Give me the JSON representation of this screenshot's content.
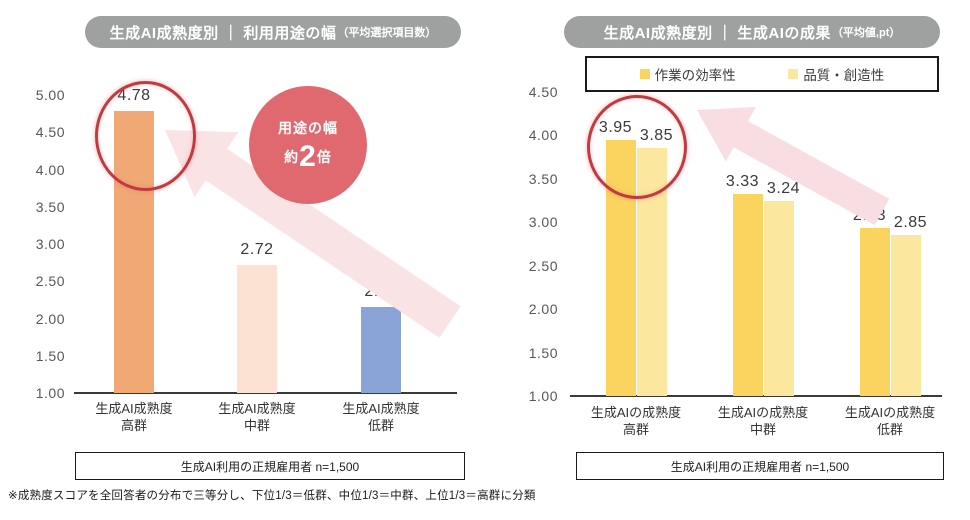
{
  "note": "※成熟度スコアを全回答者の分布で三等分し、下位1/3＝低群、中位1/3＝中群、上位1/3＝高群に分類",
  "charts": [
    {
      "title": "生成AI成熟度別 ｜ 利用用途の幅",
      "title_note": "（平均選択項目数）",
      "footer": "生成AI利用の正規雇用者 n=1,500",
      "annotation": {
        "line1": "用途の幅",
        "prefix": "約",
        "big": "2",
        "suffix": "倍"
      }
    },
    {
      "title": "生成AI成熟度別 ｜ 生成AIの成果",
      "title_note": "（平均値,pt）",
      "footer": "生成AI利用の正規雇用者 n=1,500"
    }
  ],
  "chart_data": [
    {
      "type": "bar",
      "title": "生成AI成熟度別｜利用用途の幅（平均選択項目数）",
      "categories": [
        [
          "生成AI成熟度",
          "高群"
        ],
        [
          "生成AI成熟度",
          "中群"
        ],
        [
          "生成AI成熟度",
          "低群"
        ]
      ],
      "values": [
        4.78,
        2.72,
        2.15
      ],
      "bar_colors": [
        "#F0A875",
        "#FBE2D2",
        "#8AA4D8"
      ],
      "ylim": [
        1.0,
        5.0
      ],
      "yticks": [
        5.0,
        4.5,
        4.0,
        3.5,
        3.0,
        2.5,
        2.0,
        1.5,
        1.0
      ],
      "grid": false,
      "annotation": "用途の幅 約2倍（高群は低群の約2倍）"
    },
    {
      "type": "bar",
      "title": "生成AI成熟度別｜生成AIの成果（平均値,pt）",
      "categories": [
        [
          "生成AIの成熟度",
          "高群"
        ],
        [
          "生成AIの成熟度",
          "中群"
        ],
        [
          "生成AIの成熟度",
          "低群"
        ]
      ],
      "series": [
        {
          "name": "作業の効率性",
          "color": "#FBD35F",
          "values": [
            3.95,
            3.33,
            2.93
          ]
        },
        {
          "name": "品質・創造性",
          "color": "#FCE79E",
          "values": [
            3.85,
            3.24,
            2.85
          ]
        }
      ],
      "ylim": [
        1.0,
        4.5
      ],
      "yticks": [
        4.5,
        4.0,
        3.5,
        3.0,
        2.5,
        2.0,
        1.5,
        1.0
      ],
      "grid": false,
      "legend_position": "top"
    }
  ],
  "colors": {
    "title_pill": "#9FA0A0",
    "badge": "#E0696F",
    "circle_stroke": "#C13A40",
    "arrow_left": "#FAE3E5",
    "arrow_right": "#F8DDE2",
    "axis_line": "#3A3A3A",
    "tick_text": "#595757",
    "value_text": "#3A3A3A"
  }
}
